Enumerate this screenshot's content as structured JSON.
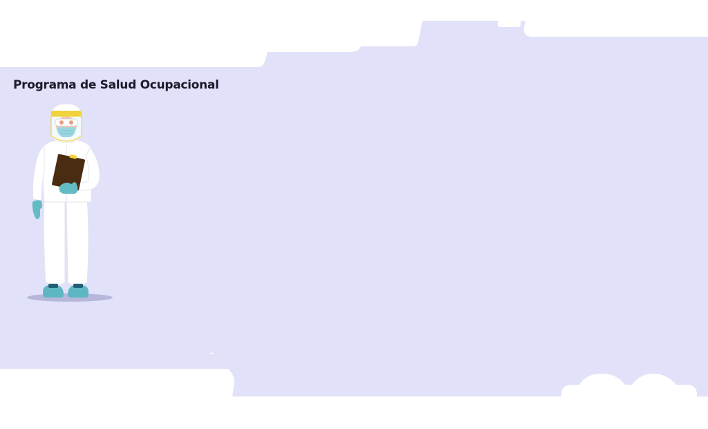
{
  "page": {
    "title": "Programa de Salud Ocupacional"
  },
  "illustration": {
    "subject": "health-worker-in-protective-suit",
    "items": [
      "face-shield-icon",
      "goggles-icon",
      "mask-icon",
      "clipboard-icon",
      "gloves-icon",
      "shoe-covers-icon"
    ]
  },
  "colors": {
    "background": "#e1e1f9",
    "page": "#ffffff",
    "title": "#1b1b2b",
    "suit": "#ffffff",
    "suit_shadow": "#e4e4ee",
    "gloves": "#63bcc4",
    "shoe_covers": "#5db7c3",
    "face_shield_band": "#f2d23c",
    "clipboard": "#4a2c12",
    "ground_shadow": "#b7b7dc"
  }
}
